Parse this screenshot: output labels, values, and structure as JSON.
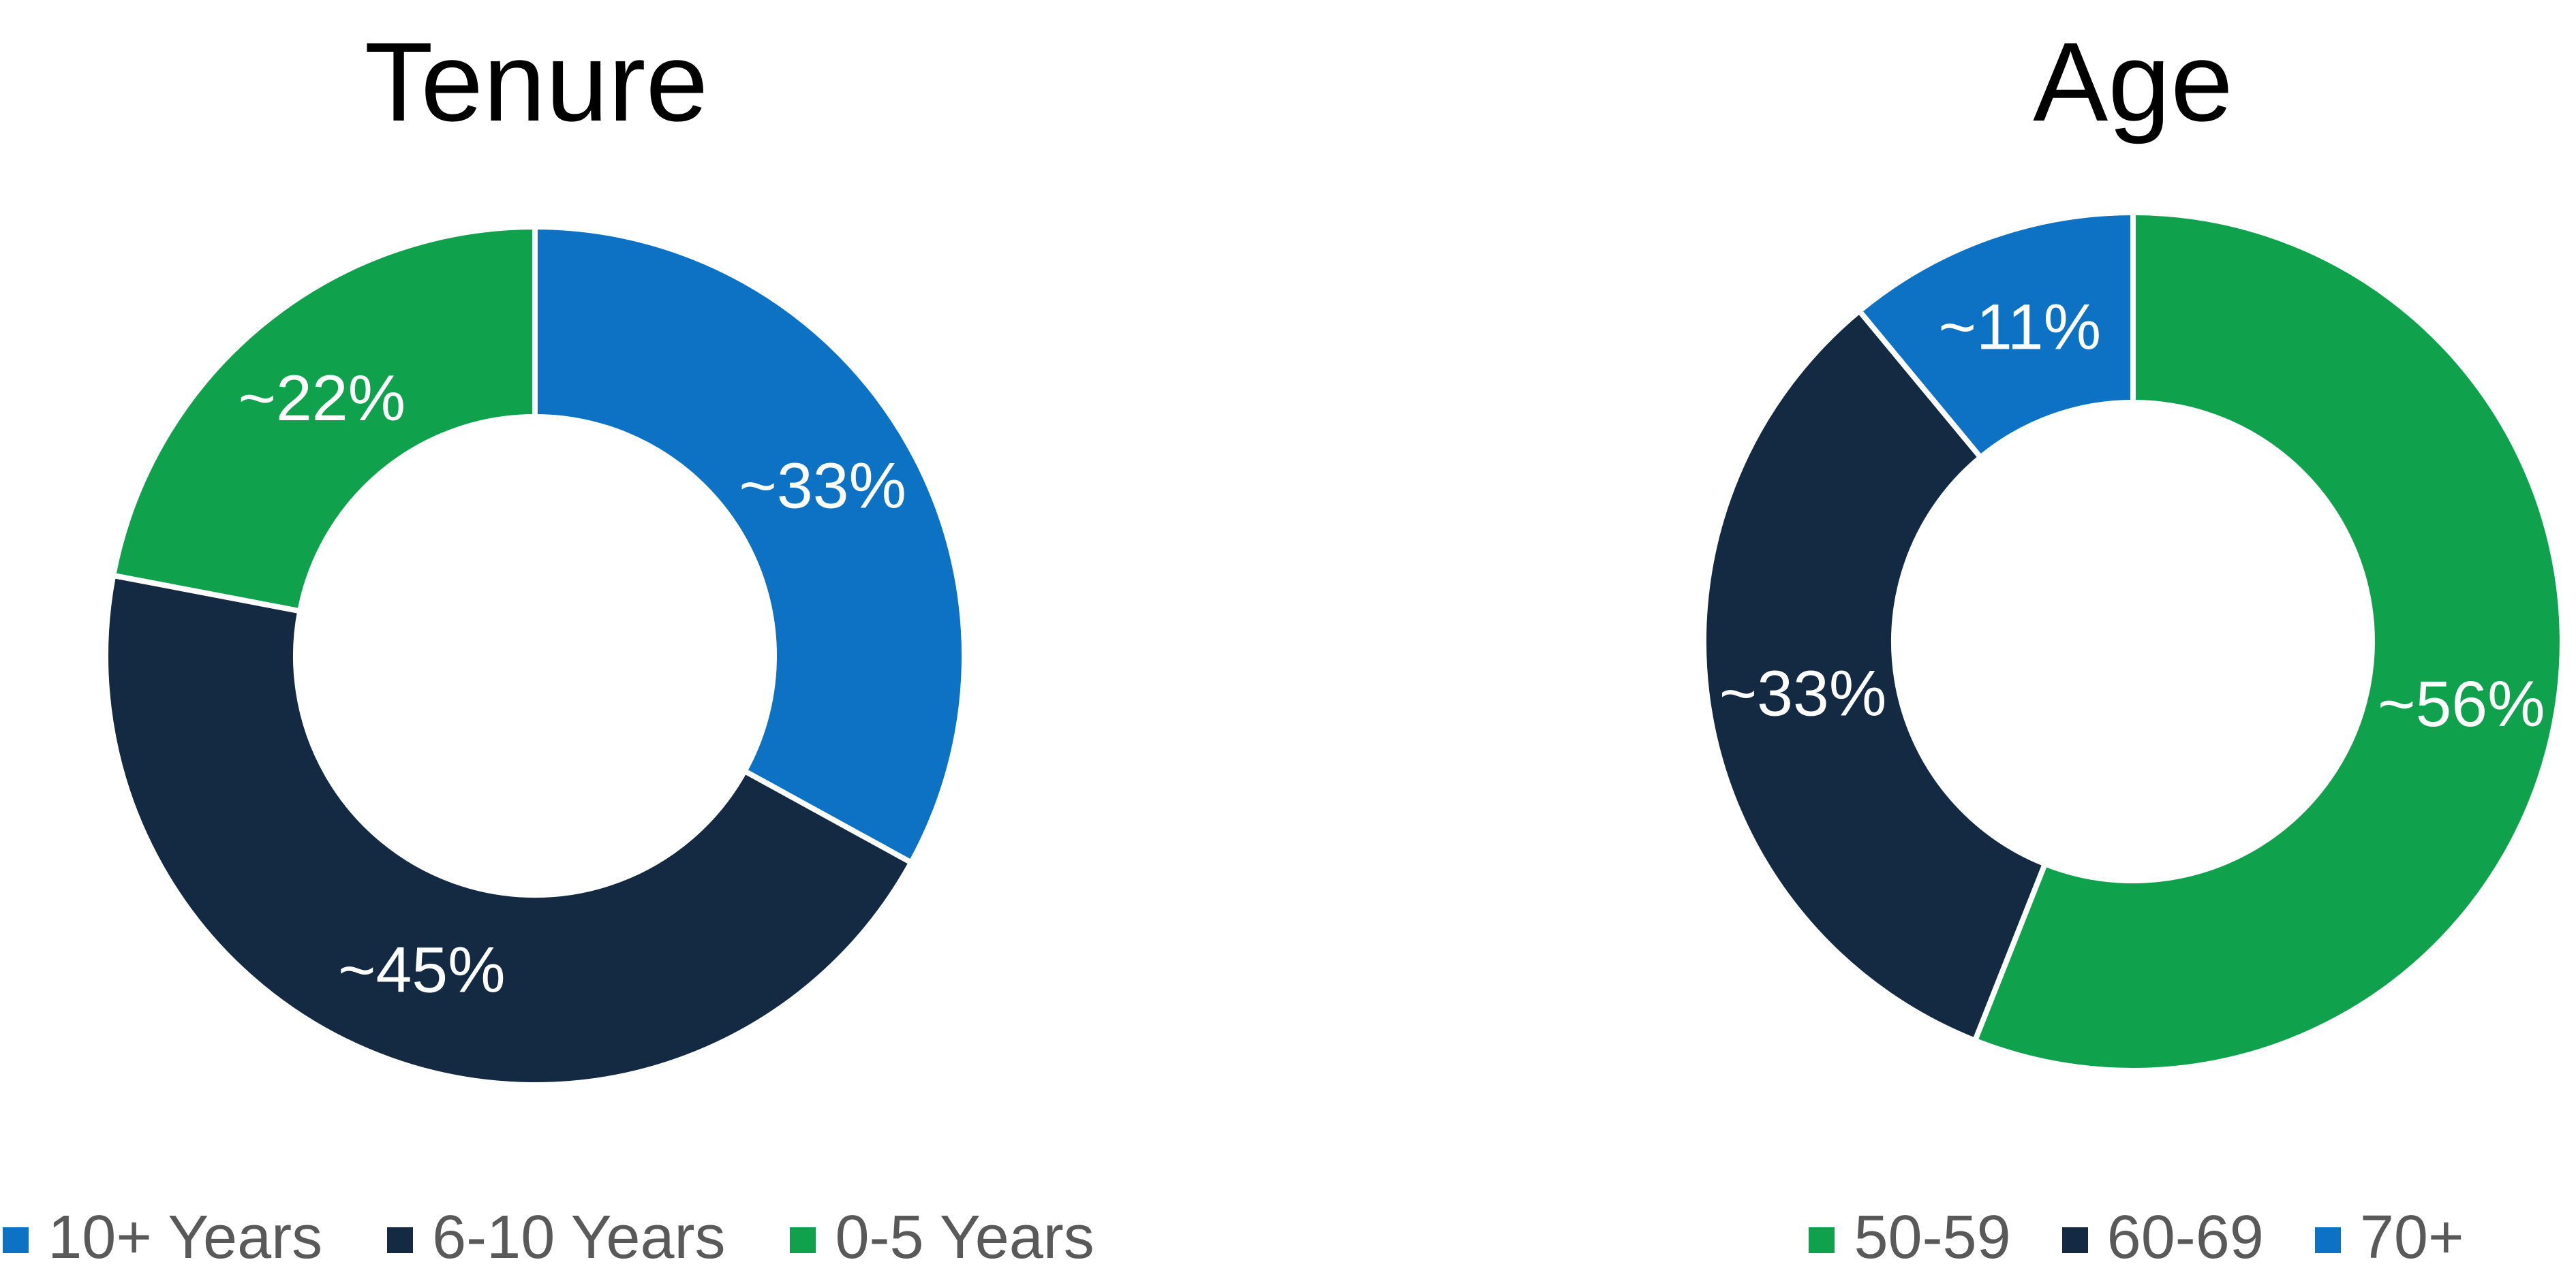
{
  "page": {
    "background": "#ffffff"
  },
  "text_colors": {
    "title": "#000000",
    "legend": "#595959",
    "data_label": "#ffffff"
  },
  "chart_data": [
    {
      "type": "pie",
      "subtype": "donut",
      "title": "Tenure",
      "categories": [
        "10+ Years",
        "6-10 Years",
        "0-5 Years"
      ],
      "values": [
        33,
        45,
        22
      ],
      "data_labels": [
        "~33%",
        "~45%",
        "~22%"
      ],
      "colors": [
        "#0D72C4",
        "#132A42",
        "#10A14D"
      ],
      "start_angle_deg": 0,
      "direction": "clockwise",
      "hole_ratio": 0.557,
      "grid": false,
      "legend_position": "bottom"
    },
    {
      "type": "pie",
      "subtype": "donut",
      "title": "Age",
      "categories": [
        "50-59",
        "60-69",
        "70+"
      ],
      "values": [
        56,
        33,
        11
      ],
      "data_labels": [
        "~56%",
        "~33%",
        "~11%"
      ],
      "colors": [
        "#10A14D",
        "#132A42",
        "#0D72C4"
      ],
      "start_angle_deg": 0,
      "direction": "clockwise",
      "hole_ratio": 0.557,
      "grid": false,
      "legend_position": "bottom"
    }
  ]
}
